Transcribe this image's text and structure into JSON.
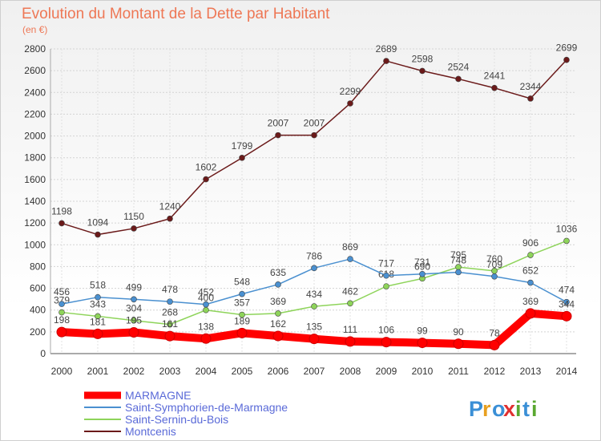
{
  "chart_data": {
    "type": "line",
    "title": "Evolution du Montant de la Dette par Habitant",
    "subtitle": "(en €)",
    "xlabel": "",
    "ylabel": "",
    "ylim": [
      0,
      2800
    ],
    "yticks": [
      0,
      200,
      400,
      600,
      800,
      1000,
      1200,
      1400,
      1600,
      1800,
      2000,
      2200,
      2400,
      2600,
      2800
    ],
    "grid": true,
    "legend_position": "bottom-left",
    "x": [
      "2000",
      "2001",
      "2002",
      "2003",
      "2004",
      "2005",
      "2006",
      "2007",
      "2008",
      "2009",
      "2010",
      "2011",
      "2012",
      "2013",
      "2014"
    ],
    "series": [
      {
        "name": "MARMAGNE",
        "color": "#ff0000",
        "values": [
          198,
          181,
          195,
          161,
          138,
          189,
          162,
          135,
          111,
          106,
          99,
          90,
          78,
          369,
          344
        ]
      },
      {
        "name": "Saint-Symphorien-de-Marmagne",
        "color": "#4a90d0",
        "values": [
          456,
          518,
          499,
          478,
          452,
          548,
          635,
          786,
          869,
          717,
          731,
          748,
          709,
          652,
          474
        ]
      },
      {
        "name": "Saint-Sernin-du-Bois",
        "color": "#8ed45a",
        "values": [
          379,
          343,
          304,
          268,
          400,
          357,
          369,
          434,
          462,
          618,
          690,
          795,
          760,
          906,
          1036
        ]
      },
      {
        "name": "Montcenis",
        "color": "#6b1a1a",
        "values": [
          1198,
          1094,
          1150,
          1240,
          1602,
          1799,
          2007,
          2007,
          2299,
          2689,
          2598,
          2524,
          2441,
          2344,
          2699
        ]
      }
    ]
  },
  "brand": {
    "text": "Proxiti",
    "letters": [
      "P",
      "r",
      "o",
      "x",
      "i",
      "t",
      "i"
    ],
    "colors": [
      "#3a8fd6",
      "#e8a020",
      "#3a8fd6",
      "#e03030",
      "#5aa830",
      "#3a8fd6",
      "#5aa830"
    ]
  }
}
